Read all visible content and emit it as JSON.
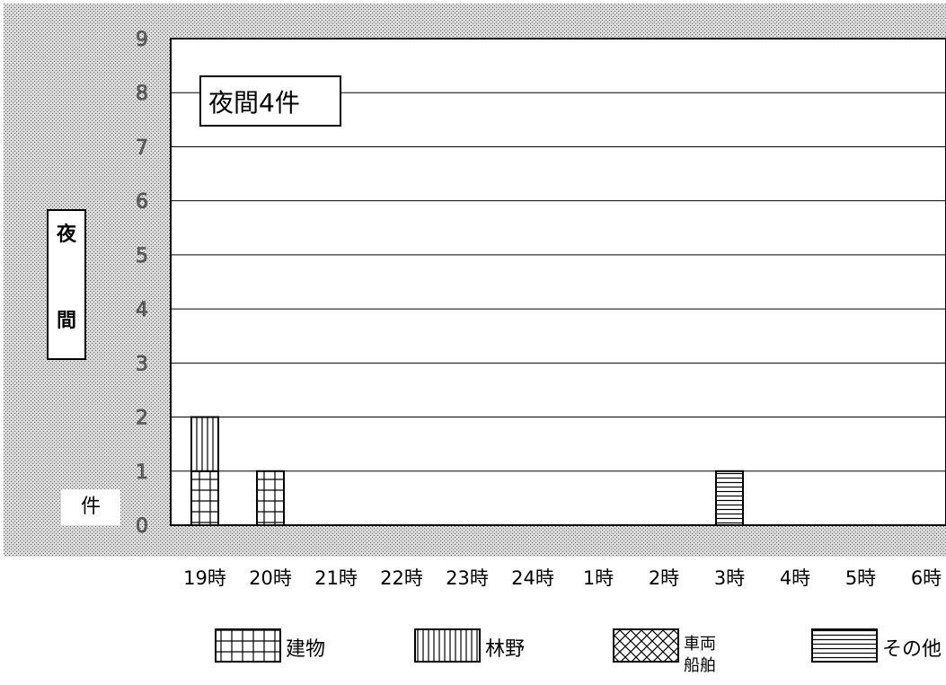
{
  "chart_data": {
    "type": "bar",
    "stacked": true,
    "title": "夜間4件",
    "ylabel_chars": [
      "夜",
      "間"
    ],
    "unit_label": "件",
    "xlabel": "",
    "categories": [
      "19時",
      "20時",
      "21時",
      "22時",
      "23時",
      "24時",
      "1時",
      "2時",
      "3時",
      "4時",
      "5時",
      "6時"
    ],
    "series": [
      {
        "name": "建物",
        "pattern": "grid",
        "values": [
          1,
          1,
          0,
          0,
          0,
          0,
          0,
          0,
          0,
          0,
          0,
          0
        ]
      },
      {
        "name": "林野",
        "pattern": "vertical",
        "values": [
          1,
          0,
          0,
          0,
          0,
          0,
          0,
          0,
          0,
          0,
          0,
          0
        ]
      },
      {
        "name": "車両\n船舶",
        "pattern": "crosshatch",
        "values": [
          0,
          0,
          0,
          0,
          0,
          0,
          0,
          0,
          0,
          0,
          0,
          0
        ]
      },
      {
        "name": "その他",
        "pattern": "horizontal",
        "values": [
          0,
          0,
          0,
          0,
          0,
          0,
          0,
          0,
          1,
          0,
          0,
          0
        ]
      }
    ],
    "yticks": [
      "0",
      "1",
      "2",
      "3",
      "4",
      "5",
      "6",
      "7",
      "8",
      "9"
    ],
    "ylim": [
      0,
      9
    ],
    "grid": true,
    "legend_position": "bottom"
  }
}
